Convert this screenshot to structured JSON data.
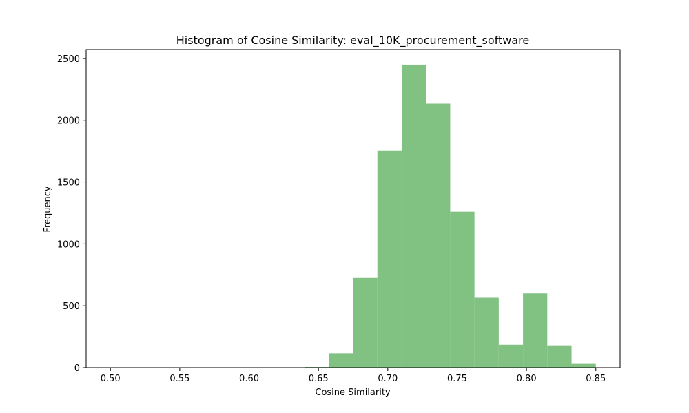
{
  "chart_data": {
    "type": "bar",
    "title": "Histogram of Cosine Similarity: eval_10K_procurement_software",
    "xlabel": "Cosine Similarity",
    "ylabel": "Frequency",
    "xlim": [
      0.4825,
      0.8675
    ],
    "ylim": [
      0,
      2572
    ],
    "xticks": [
      0.5,
      0.55,
      0.6,
      0.65,
      0.7,
      0.75,
      0.8,
      0.85
    ],
    "xtick_labels": [
      "0.50",
      "0.55",
      "0.60",
      "0.65",
      "0.70",
      "0.75",
      "0.80",
      "0.85"
    ],
    "yticks": [
      0,
      500,
      1000,
      1500,
      2000,
      2500
    ],
    "ytick_labels": [
      "0",
      "500",
      "1000",
      "1500",
      "2000",
      "2500"
    ],
    "bar_color": "#81c182",
    "grid": false,
    "bins": [
      {
        "x0": 0.5,
        "x1": 0.5175,
        "count": 1
      },
      {
        "x0": 0.5175,
        "x1": 0.535,
        "count": 0
      },
      {
        "x0": 0.535,
        "x1": 0.5525,
        "count": 0
      },
      {
        "x0": 0.5525,
        "x1": 0.57,
        "count": 0
      },
      {
        "x0": 0.57,
        "x1": 0.5875,
        "count": 0
      },
      {
        "x0": 0.5875,
        "x1": 0.605,
        "count": 0
      },
      {
        "x0": 0.605,
        "x1": 0.6225,
        "count": 0
      },
      {
        "x0": 0.6225,
        "x1": 0.64,
        "count": 0
      },
      {
        "x0": 0.64,
        "x1": 0.6575,
        "count": 5
      },
      {
        "x0": 0.6575,
        "x1": 0.675,
        "count": 115
      },
      {
        "x0": 0.675,
        "x1": 0.6925,
        "count": 725
      },
      {
        "x0": 0.6925,
        "x1": 0.71,
        "count": 1755
      },
      {
        "x0": 0.71,
        "x1": 0.7275,
        "count": 2450
      },
      {
        "x0": 0.7275,
        "x1": 0.745,
        "count": 2135
      },
      {
        "x0": 0.745,
        "x1": 0.7625,
        "count": 1260
      },
      {
        "x0": 0.7625,
        "x1": 0.78,
        "count": 565
      },
      {
        "x0": 0.78,
        "x1": 0.7975,
        "count": 185
      },
      {
        "x0": 0.7975,
        "x1": 0.815,
        "count": 600
      },
      {
        "x0": 0.815,
        "x1": 0.8325,
        "count": 180
      },
      {
        "x0": 0.8325,
        "x1": 0.85,
        "count": 30
      }
    ]
  }
}
